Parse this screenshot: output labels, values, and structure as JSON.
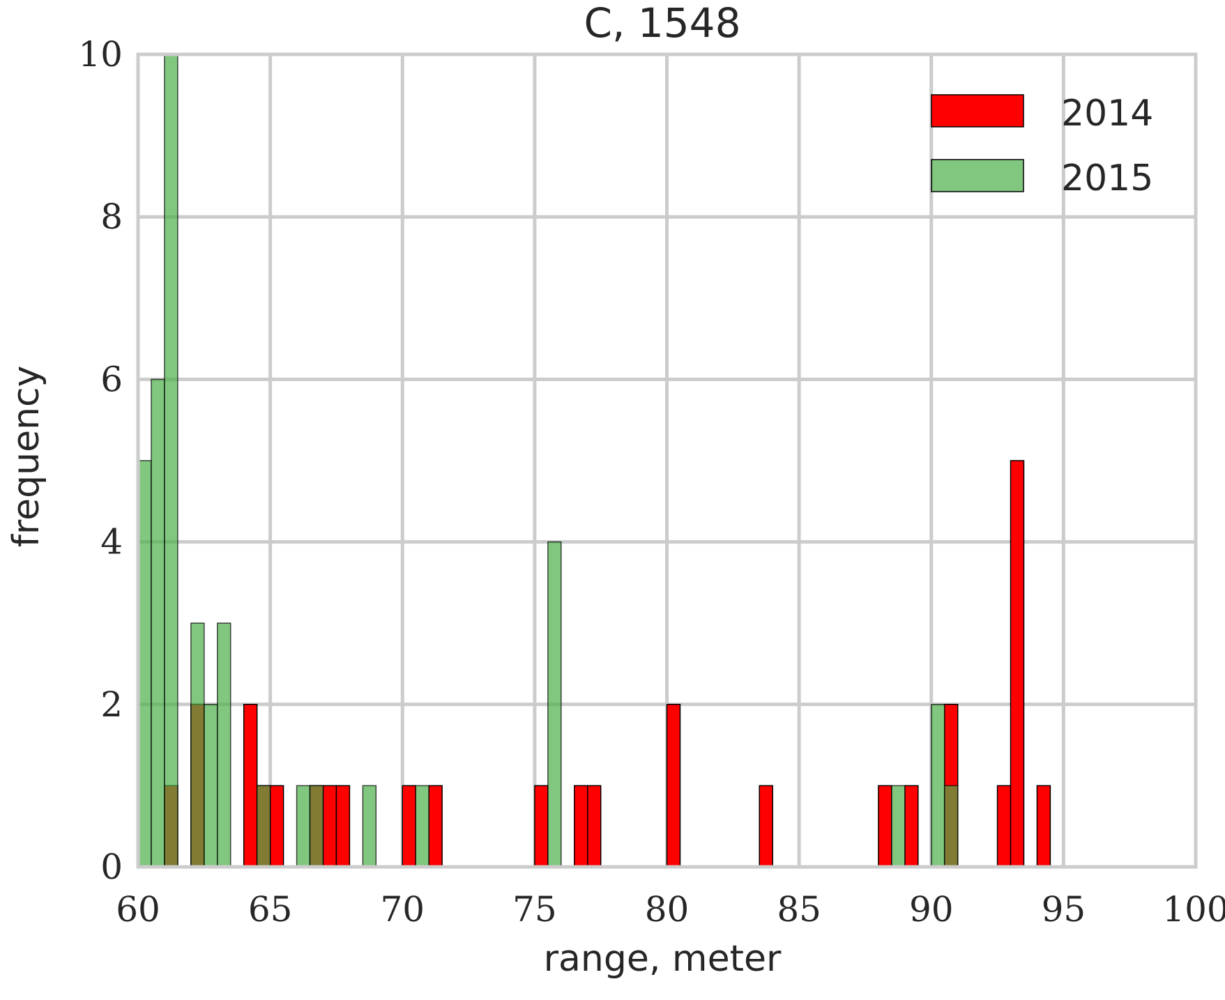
{
  "chart_data": {
    "type": "bar",
    "title": "C, 1548",
    "xlabel": "range, meter",
    "ylabel": "frequency",
    "xlim": [
      60,
      100
    ],
    "ylim": [
      0,
      10
    ],
    "xticks": [
      "60",
      "65",
      "70",
      "75",
      "80",
      "85",
      "90",
      "95",
      "100"
    ],
    "yticks": [
      "0",
      "2",
      "4",
      "6",
      "8",
      "10"
    ],
    "grid": true,
    "legend_position": "top-right",
    "bin_width": 0.5,
    "series": [
      {
        "name": "2014",
        "color": "#ff0000",
        "bins": [
          {
            "x": 61.25,
            "value": 1
          },
          {
            "x": 62.25,
            "value": 2
          },
          {
            "x": 64.25,
            "value": 2
          },
          {
            "x": 64.75,
            "value": 1
          },
          {
            "x": 65.25,
            "value": 1
          },
          {
            "x": 66.75,
            "value": 1
          },
          {
            "x": 67.25,
            "value": 1
          },
          {
            "x": 67.75,
            "value": 1
          },
          {
            "x": 70.25,
            "value": 1
          },
          {
            "x": 71.25,
            "value": 1
          },
          {
            "x": 75.25,
            "value": 1
          },
          {
            "x": 76.75,
            "value": 1
          },
          {
            "x": 77.25,
            "value": 1
          },
          {
            "x": 80.25,
            "value": 2
          },
          {
            "x": 83.75,
            "value": 1
          },
          {
            "x": 88.25,
            "value": 1
          },
          {
            "x": 89.25,
            "value": 1
          },
          {
            "x": 90.75,
            "value": 2
          },
          {
            "x": 92.75,
            "value": 1
          },
          {
            "x": 93.25,
            "value": 5
          },
          {
            "x": 94.25,
            "value": 1
          }
        ]
      },
      {
        "name": "2015",
        "color": "#4daf4a",
        "bins": [
          {
            "x": 60.25,
            "value": 5
          },
          {
            "x": 60.75,
            "value": 6
          },
          {
            "x": 61.25,
            "value": 10
          },
          {
            "x": 62.25,
            "value": 3
          },
          {
            "x": 62.75,
            "value": 2
          },
          {
            "x": 63.25,
            "value": 3
          },
          {
            "x": 64.75,
            "value": 1
          },
          {
            "x": 66.25,
            "value": 1
          },
          {
            "x": 66.75,
            "value": 1
          },
          {
            "x": 68.75,
            "value": 1
          },
          {
            "x": 70.75,
            "value": 1
          },
          {
            "x": 75.75,
            "value": 4
          },
          {
            "x": 88.75,
            "value": 1
          },
          {
            "x": 90.25,
            "value": 2
          },
          {
            "x": 90.75,
            "value": 1
          }
        ]
      }
    ]
  }
}
